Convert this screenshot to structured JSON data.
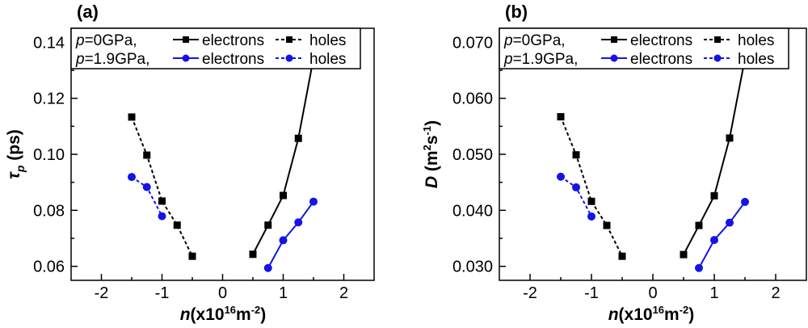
{
  "colors": {
    "p0": "#000000",
    "p19": "#1414e6"
  },
  "chart_data": [
    {
      "type": "line",
      "panel": "(a)",
      "xlabel": {
        "main": "n",
        "pre": "(x10",
        "sup": "16",
        "mid": "m",
        "sup2": "-2",
        "post": ")"
      },
      "ylabel": {
        "main": "τ",
        "sub": "p",
        "post": " (ps)"
      },
      "xlim": [
        -2.5,
        2.5
      ],
      "ylim": [
        0.055,
        0.145
      ],
      "xticks": [
        -2,
        -1,
        0,
        1,
        2
      ],
      "xtick_labels": [
        "-2",
        "-1",
        "0",
        "1",
        "2"
      ],
      "yticks": [
        0.06,
        0.08,
        0.1,
        0.12,
        0.14
      ],
      "ytick_labels": [
        "0.06",
        "0.08",
        "0.10",
        "0.12",
        "0.14"
      ],
      "legend": {
        "placement": "top-left",
        "rows": [
          {
            "condition": "p=0GPa,",
            "p_var": "p",
            "p_rest": "=0GPa,",
            "solid": "electrons",
            "dashed": "holes"
          },
          {
            "condition": "p=1.9GPa,",
            "p_var": "p",
            "p_rest": "=1.9GPa,",
            "solid": "electrons",
            "dashed": "holes"
          }
        ]
      },
      "series": [
        {
          "pressure": "0GPa",
          "carrier": "electrons",
          "color": "#000000",
          "marker": "square",
          "dash": false,
          "x": [
            0.5,
            0.75,
            1.0,
            1.25,
            1.5
          ],
          "y": [
            0.0643,
            0.0747,
            0.0853,
            0.1057,
            0.1343
          ]
        },
        {
          "pressure": "0GPa",
          "carrier": "holes",
          "color": "#000000",
          "marker": "square",
          "dash": true,
          "x": [
            -1.5,
            -1.25,
            -1.0,
            -0.75,
            -0.5
          ],
          "y": [
            0.1133,
            0.0997,
            0.0833,
            0.0747,
            0.0636
          ]
        },
        {
          "pressure": "1.9GPa",
          "carrier": "electrons",
          "color": "#1414e6",
          "marker": "circle",
          "dash": false,
          "x": [
            0.75,
            1.0,
            1.25,
            1.5
          ],
          "y": [
            0.0594,
            0.0693,
            0.0757,
            0.0831
          ]
        },
        {
          "pressure": "1.9GPa",
          "carrier": "holes",
          "color": "#1414e6",
          "marker": "circle",
          "dash": true,
          "x": [
            -1.5,
            -1.25,
            -1.0
          ],
          "y": [
            0.0919,
            0.0883,
            0.0779
          ]
        }
      ]
    },
    {
      "type": "line",
      "panel": "(b)",
      "xlabel": {
        "main": "n",
        "pre": "(x10",
        "sup": "16",
        "mid": "m",
        "sup2": "-2",
        "post": ")"
      },
      "ylabel": {
        "main": "D",
        "pre": " (m",
        "sup": "2",
        "mid": "s",
        "sup2": "-1",
        "post": ")"
      },
      "xlim": [
        -2.5,
        2.5
      ],
      "ylim": [
        0.0275,
        0.0725
      ],
      "xticks": [
        -2,
        -1,
        0,
        1,
        2
      ],
      "xtick_labels": [
        "-2",
        "-1",
        "0",
        "1",
        "2"
      ],
      "yticks": [
        0.03,
        0.04,
        0.05,
        0.06,
        0.07
      ],
      "ytick_labels": [
        "0.030",
        "0.040",
        "0.050",
        "0.060",
        "0.070"
      ],
      "legend": {
        "placement": "top-left",
        "rows": [
          {
            "condition": "p=0GPa,",
            "p_var": "p",
            "p_rest": "=0GPa,",
            "solid": "electrons",
            "dashed": "holes"
          },
          {
            "condition": "p=1.9GPa,",
            "p_var": "p",
            "p_rest": "=1.9GPa,",
            "solid": "electrons",
            "dashed": "holes"
          }
        ]
      },
      "series": [
        {
          "pressure": "0GPa",
          "carrier": "electrons",
          "color": "#000000",
          "marker": "square",
          "dash": false,
          "x": [
            0.5,
            0.75,
            1.0,
            1.25,
            1.5
          ],
          "y": [
            0.0321,
            0.0373,
            0.0426,
            0.0529,
            0.0671
          ]
        },
        {
          "pressure": "0GPa",
          "carrier": "holes",
          "color": "#000000",
          "marker": "square",
          "dash": true,
          "x": [
            -1.5,
            -1.25,
            -1.0,
            -0.75,
            -0.5
          ],
          "y": [
            0.0567,
            0.0499,
            0.0416,
            0.0373,
            0.0318
          ]
        },
        {
          "pressure": "1.9GPa",
          "carrier": "electrons",
          "color": "#1414e6",
          "marker": "circle",
          "dash": false,
          "x": [
            0.75,
            1.0,
            1.25,
            1.5
          ],
          "y": [
            0.0297,
            0.0347,
            0.0378,
            0.0415
          ]
        },
        {
          "pressure": "1.9GPa",
          "carrier": "holes",
          "color": "#1414e6",
          "marker": "circle",
          "dash": true,
          "x": [
            -1.5,
            -1.25,
            -1.0
          ],
          "y": [
            0.046,
            0.0441,
            0.0389
          ]
        }
      ]
    }
  ]
}
